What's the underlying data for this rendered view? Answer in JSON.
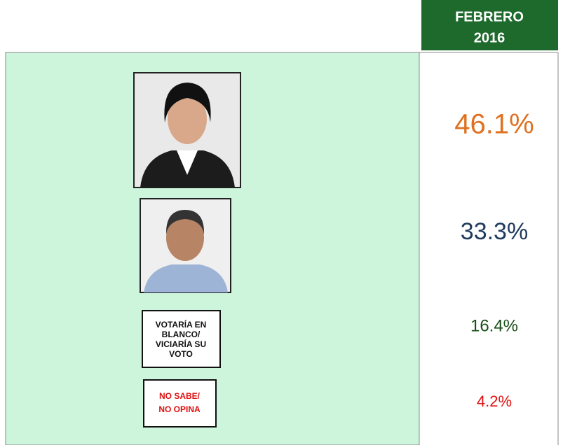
{
  "header": {
    "lines": [
      "FEBRERO",
      "2016"
    ]
  },
  "rows": [
    {
      "value": "46.1%"
    },
    {
      "value": "33.3%"
    },
    {
      "label": [
        "VOTARÍA EN",
        "BLANCO/",
        "VICIARÍA SU",
        "VOTO"
      ],
      "value": "16.4%"
    },
    {
      "label": [
        "NO SABE/",
        "NO OPINA"
      ],
      "value": "4.2%"
    }
  ]
}
